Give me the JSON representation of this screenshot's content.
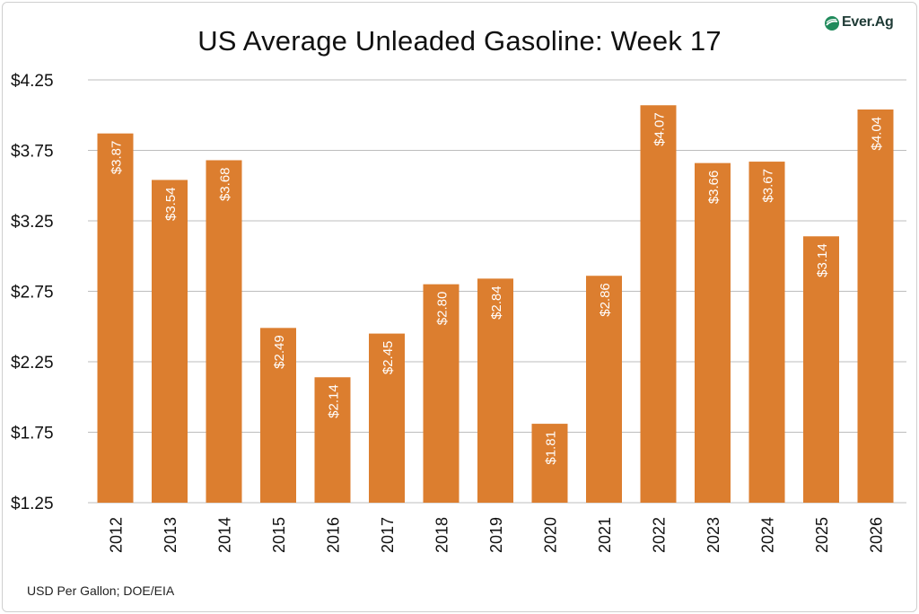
{
  "title": "US Average Unleaded Gasoline: Week 17",
  "footer": "USD Per Gallon; DOE/EIA",
  "logo": {
    "text": "Ever.Ag",
    "icon": "ever-ag-leaf-icon",
    "color": "#1f8a5b"
  },
  "colors": {
    "bar": "#dc7e2f",
    "grid": "#bdbdbd",
    "label": "#ffffff"
  },
  "chart_data": {
    "type": "bar",
    "title": "US Average Unleaded Gasoline: Week 17",
    "categories": [
      "2012",
      "2013",
      "2014",
      "2015",
      "2016",
      "2017",
      "2018",
      "2019",
      "2020",
      "2021",
      "2022",
      "2023",
      "2024",
      "2025",
      "2026"
    ],
    "values": [
      3.87,
      3.54,
      3.68,
      2.49,
      2.14,
      2.45,
      2.8,
      2.84,
      1.81,
      2.86,
      4.07,
      3.66,
      3.67,
      3.14,
      4.04
    ],
    "data_labels": [
      "$3.87",
      "$3.54",
      "$3.68",
      "$2.49",
      "$2.14",
      "$2.45",
      "$2.80",
      "$2.84",
      "$1.81",
      "$2.86",
      "$4.07",
      "$3.66",
      "$3.67",
      "$3.14",
      "$4.04"
    ],
    "yticks": [
      1.25,
      1.75,
      2.25,
      2.75,
      3.25,
      3.75,
      4.25
    ],
    "ytick_labels": [
      "$1.25",
      "$1.75",
      "$2.25",
      "$2.75",
      "$3.25",
      "$3.75",
      "$4.25"
    ],
    "ylim": [
      1.25,
      4.25
    ],
    "xlabel": "",
    "ylabel": "",
    "grid": true,
    "legend": "none"
  }
}
